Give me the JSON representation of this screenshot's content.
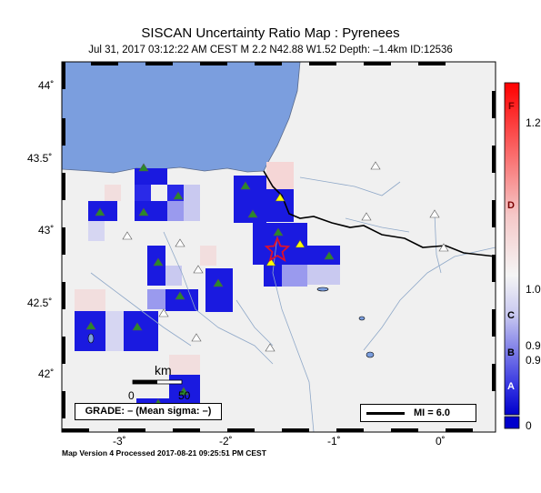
{
  "header": {
    "title": "SISCAN Uncertainty Ratio Map : Pyrenees",
    "subtitle": "Jul 31, 2017 03:12:22 AM CEST   M 2.2   N42.88 W1.52   Depth: –1.4km   ID:12536"
  },
  "map": {
    "lat_labels": [
      "44˚",
      "43.5˚",
      "43˚",
      "42.5˚",
      "42˚"
    ],
    "lon_labels": [
      "-3˚",
      "-2˚",
      "-1˚",
      "0˚"
    ],
    "lat_values": [
      44,
      43.5,
      43,
      42.5,
      42
    ],
    "lon_values": [
      -3,
      -2,
      -1,
      0
    ],
    "epicenter": {
      "lat": 42.88,
      "lon": -1.52
    },
    "colors": {
      "sea": "#7b9ede",
      "land": "#f0f0f0",
      "cell_blue": "#1010e0",
      "star": "#e0102a",
      "station_green": "#2a8a2a",
      "station_yellow": "#ffff00"
    },
    "scale_bar": {
      "unit": "km",
      "min_label": "0",
      "max_label": "50"
    },
    "grade_box": "GRADE: – (Mean sigma: –)",
    "mi_legend": "MI = 6.0"
  },
  "colorbar": {
    "letters": [
      "F",
      "D",
      "C",
      "B",
      "A"
    ],
    "numbers": [
      "1.2",
      "1.0",
      "0.9",
      "0.9",
      "0"
    ]
  },
  "footer": "Map Version 4 Processed 2017-08-21 09:25:51 PM CEST"
}
